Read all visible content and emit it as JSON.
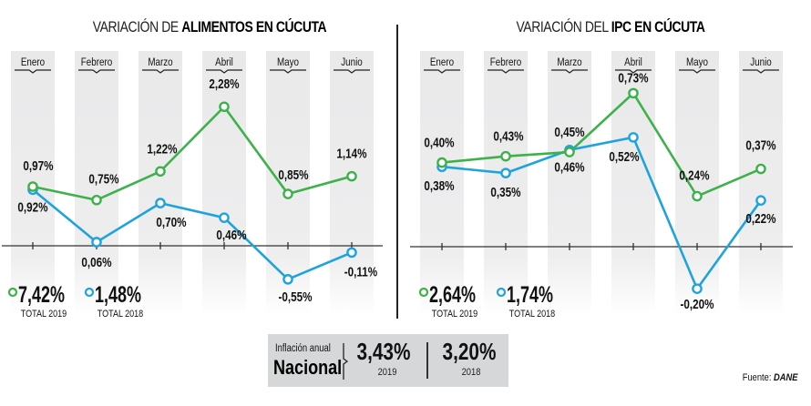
{
  "chart_data": [
    {
      "type": "line",
      "title": "VARIACIÓN DE ALIMENTOS EN CÚCUTA",
      "title_light": "VARIACIÓN DE ",
      "title_bold": "ALIMENTOS EN CÚCUTA",
      "categories": [
        "Enero",
        "Febrero",
        "Marzo",
        "Abril",
        "Mayo",
        "Junio"
      ],
      "series": [
        {
          "name": "2019",
          "color": "#3db14a",
          "values": [
            0.97,
            0.75,
            1.22,
            2.28,
            0.85,
            1.14
          ],
          "labels": [
            "0,97%",
            "0,75%",
            "1,22%",
            "2,28%",
            "0,85%",
            "1,14%"
          ]
        },
        {
          "name": "2018",
          "color": "#1fa3dc",
          "values": [
            0.92,
            0.06,
            0.7,
            0.46,
            -0.55,
            -0.11
          ],
          "labels": [
            "0,92%",
            "0,06%",
            "0,70%",
            "0,46%",
            "-0,55%",
            "-0,11%"
          ]
        }
      ],
      "legend": [
        {
          "value": "7,42%",
          "label": "TOTAL 2019",
          "color": "#3db14a"
        },
        {
          "value": "1,48%",
          "label": "TOTAL 2018",
          "color": "#1fa3dc"
        }
      ],
      "xlabel": "",
      "ylabel": "",
      "ylim": [
        -0.6,
        2.4
      ],
      "grid": false,
      "legend_position": "bottom-left"
    },
    {
      "type": "line",
      "title": "VARIACIÓN DEL IPC EN CÚCUTA",
      "title_light": "VARIACIÓN DEL ",
      "title_bold": "IPC EN CÚCUTA",
      "categories": [
        "Enero",
        "Febrero",
        "Marzo",
        "Abril",
        "Mayo",
        "Junio"
      ],
      "series": [
        {
          "name": "2019",
          "color": "#3db14a",
          "values": [
            0.4,
            0.43,
            0.45,
            0.73,
            0.24,
            0.37
          ],
          "labels": [
            "0,40%",
            "0,43%",
            "0,45%",
            "0,73%",
            "0,24%",
            "0,37%"
          ]
        },
        {
          "name": "2018",
          "color": "#1fa3dc",
          "values": [
            0.38,
            0.35,
            0.46,
            0.52,
            -0.2,
            0.22
          ],
          "labels": [
            "0,38%",
            "0,35%",
            "0,46%",
            "0,52%",
            "-0,20%",
            "0,22%"
          ]
        }
      ],
      "legend": [
        {
          "value": "2,64%",
          "label": "TOTAL 2019",
          "color": "#3db14a"
        },
        {
          "value": "1,74%",
          "label": "TOTAL 2018",
          "color": "#1fa3dc"
        }
      ],
      "xlabel": "",
      "ylabel": "",
      "ylim": [
        -0.25,
        0.8
      ],
      "grid": false,
      "legend_position": "bottom-left"
    }
  ],
  "national": {
    "label_small": "Inflación anual",
    "label_big": "Nacional",
    "values": [
      {
        "value": "3,43%",
        "year": "2019"
      },
      {
        "value": "3,20%",
        "year": "2018"
      }
    ]
  },
  "source": {
    "prefix": "Fuente: ",
    "name": "DANE"
  }
}
